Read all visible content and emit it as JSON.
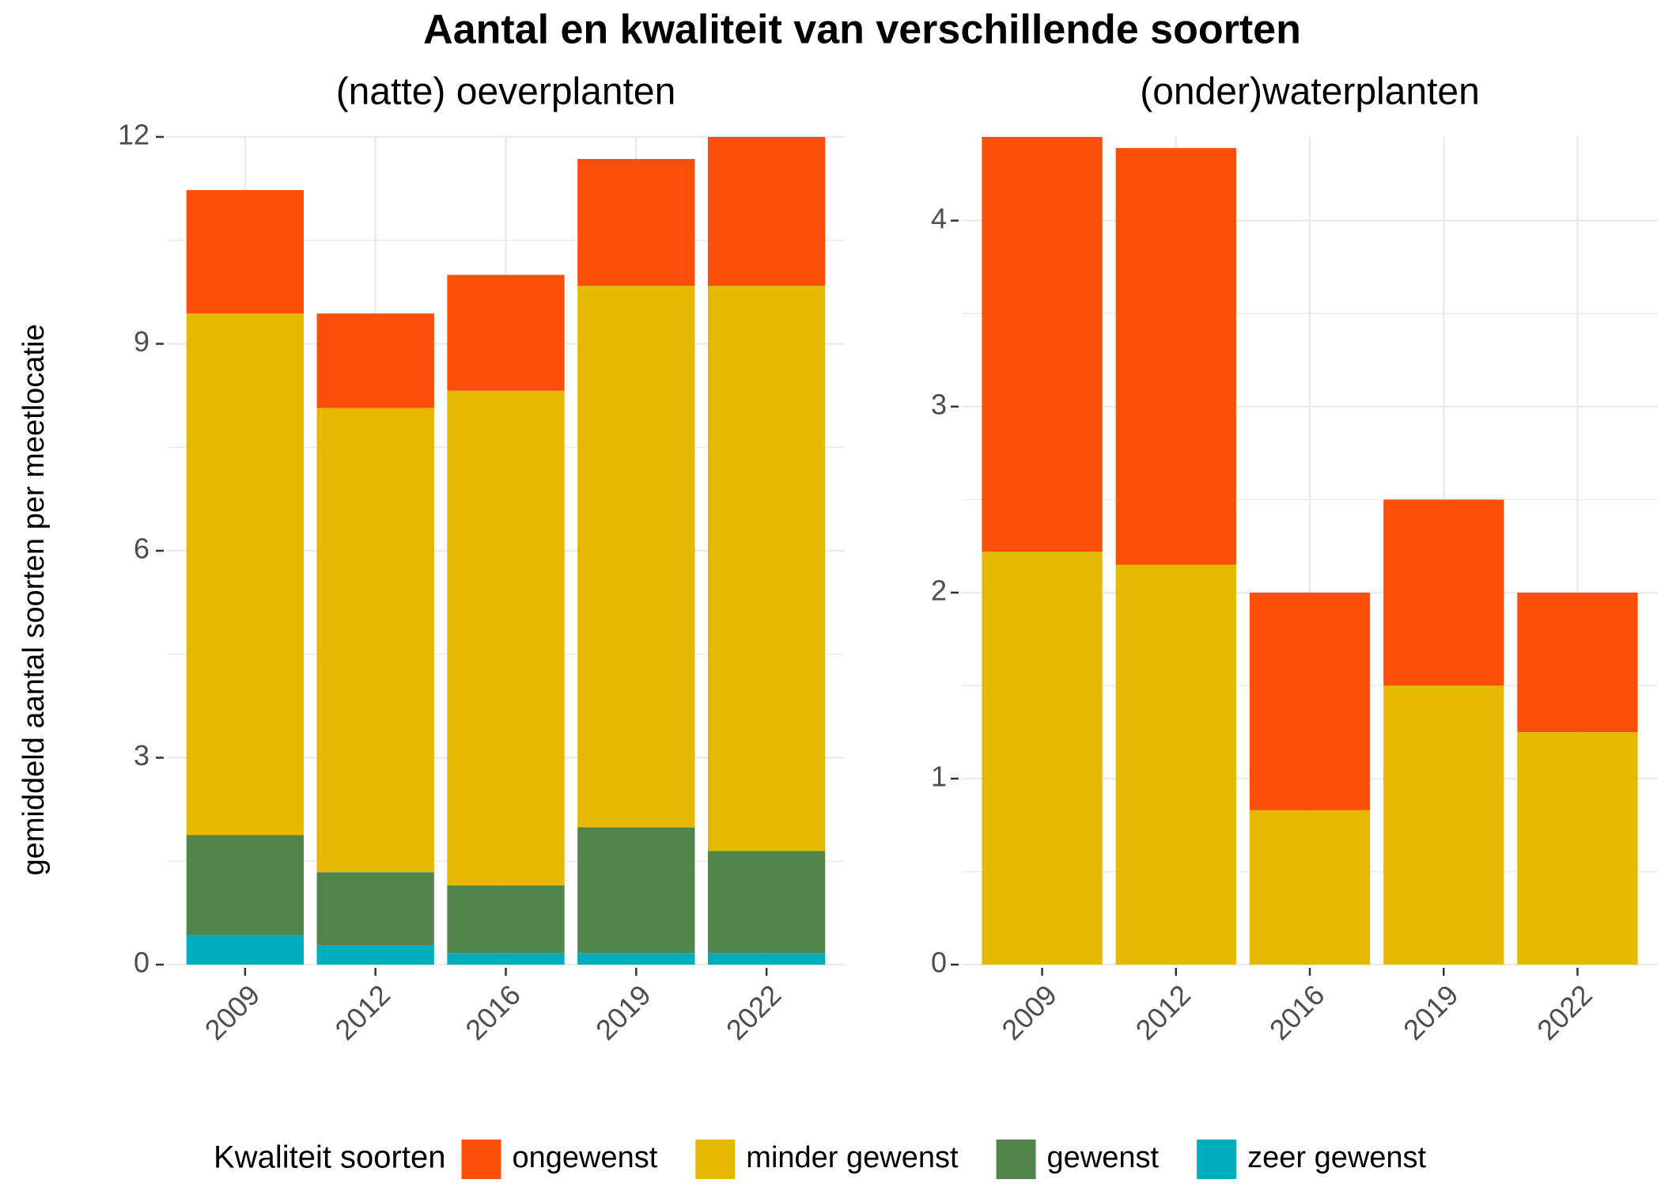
{
  "title": "Aantal en kwaliteit van verschillende soorten",
  "y_label": "gemiddeld aantal soorten per meetlocatie",
  "legend_title": "Kwaliteit soorten",
  "chart_data": [
    {
      "type": "stacked_bar",
      "title": "(natte) oeverplanten",
      "categories": [
        "2009",
        "2012",
        "2016",
        "2019",
        "2022"
      ],
      "series": [
        {
          "name": "zeer gewenst",
          "color": "#00adbc",
          "values": [
            0.43,
            0.28,
            0.17,
            0.17,
            0.17
          ]
        },
        {
          "name": "gewenst",
          "color": "#52854c",
          "values": [
            1.45,
            1.06,
            0.98,
            1.82,
            1.48
          ]
        },
        {
          "name": "minder gewenst",
          "color": "#e5b900",
          "values": [
            7.56,
            6.73,
            7.17,
            7.85,
            8.19
          ]
        },
        {
          "name": "ongewenst",
          "color": "#fc4f0a",
          "values": [
            1.79,
            1.37,
            1.68,
            1.84,
            2.16
          ]
        }
      ],
      "ylim": [
        0,
        12
      ],
      "yticks": [
        0,
        3,
        6,
        9,
        12
      ],
      "grid": true,
      "minor_grid": true
    },
    {
      "type": "stacked_bar",
      "title": "(onder)waterplanten",
      "categories": [
        "2009",
        "2012",
        "2016",
        "2019",
        "2022"
      ],
      "series": [
        {
          "name": "minder gewenst",
          "color": "#e5b900",
          "values": [
            2.22,
            2.15,
            0.83,
            1.5,
            1.25
          ]
        },
        {
          "name": "ongewenst",
          "color": "#fc4f0a",
          "values": [
            2.23,
            2.24,
            1.17,
            1.0,
            0.75
          ]
        }
      ],
      "ylim": [
        0,
        4.45
      ],
      "yticks": [
        0,
        1,
        2,
        3,
        4
      ],
      "grid": true,
      "minor_grid": true
    }
  ]
}
